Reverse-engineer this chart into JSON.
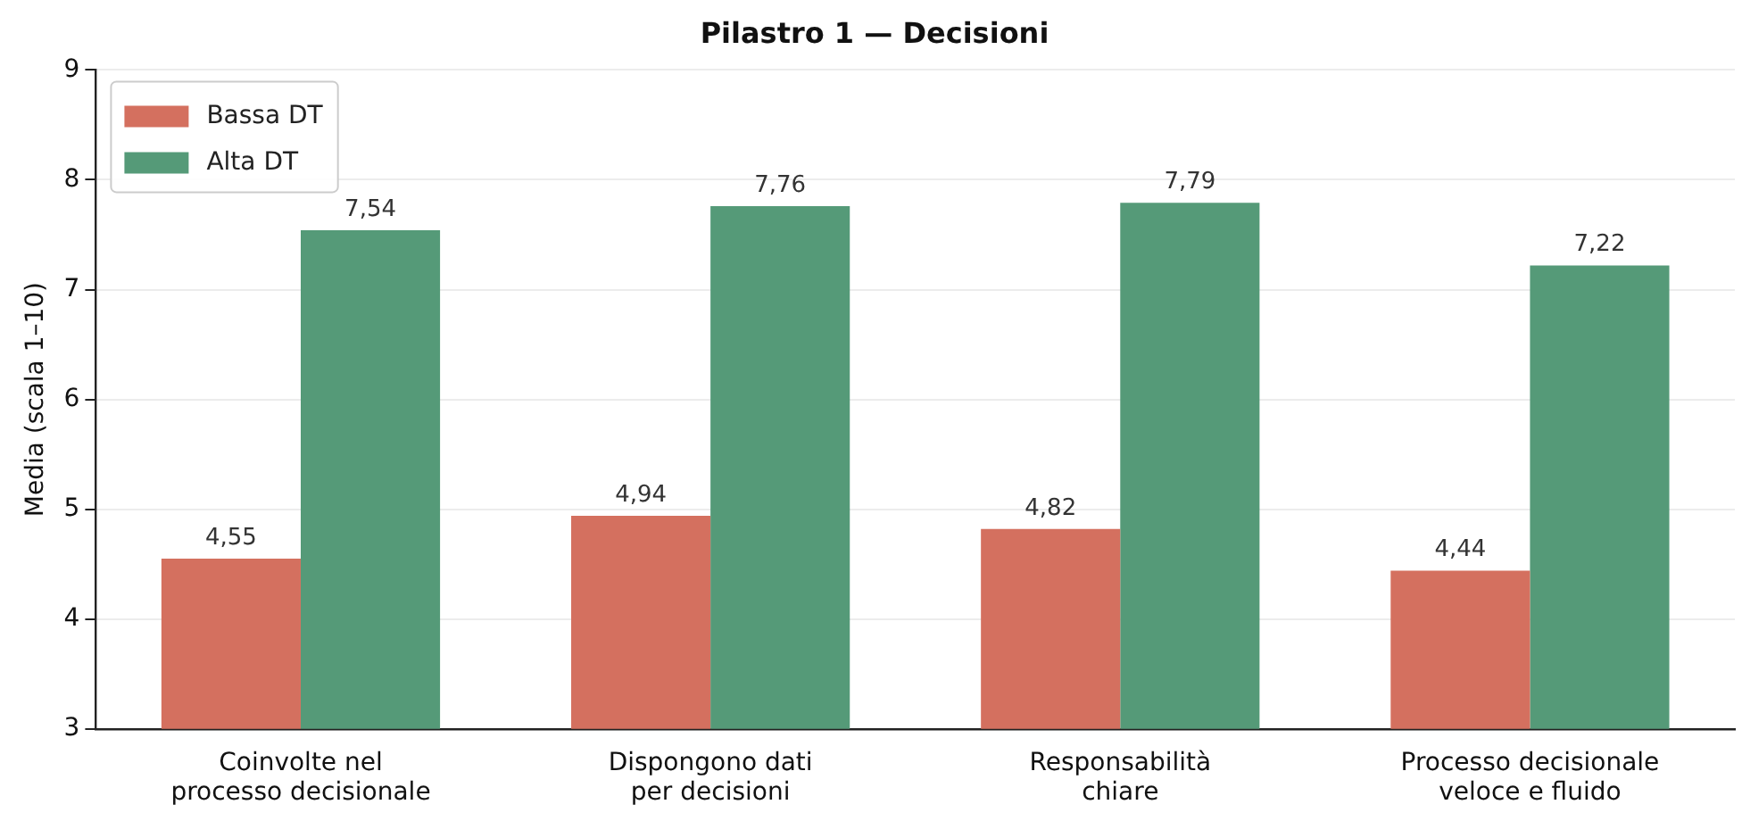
{
  "chart_data": {
    "type": "bar",
    "title": "Pilastro 1 — Decisioni",
    "ylabel": "Media (scala 1–10)",
    "categories": [
      "Coinvolte nel\nprocesso decisionale",
      "Dispongono dati\nper decisioni",
      "Responsabilità\nchiare",
      "Processo decisionale\nveloce e fluido"
    ],
    "series": [
      {
        "name": "Bassa DT",
        "color": "#d4705f",
        "values": [
          4.55,
          4.94,
          4.82,
          4.44
        ],
        "value_labels": [
          "4,55",
          "4,94",
          "4,82",
          "4,44"
        ]
      },
      {
        "name": "Alta DT",
        "color": "#559a78",
        "values": [
          7.54,
          7.76,
          7.79,
          7.22
        ],
        "value_labels": [
          "7,54",
          "7,76",
          "7,79",
          "7,22"
        ]
      }
    ],
    "ylim": [
      3,
      9
    ],
    "yticks": [
      3,
      4,
      5,
      6,
      7,
      8,
      9
    ],
    "grid": "y",
    "legend": "top left"
  }
}
